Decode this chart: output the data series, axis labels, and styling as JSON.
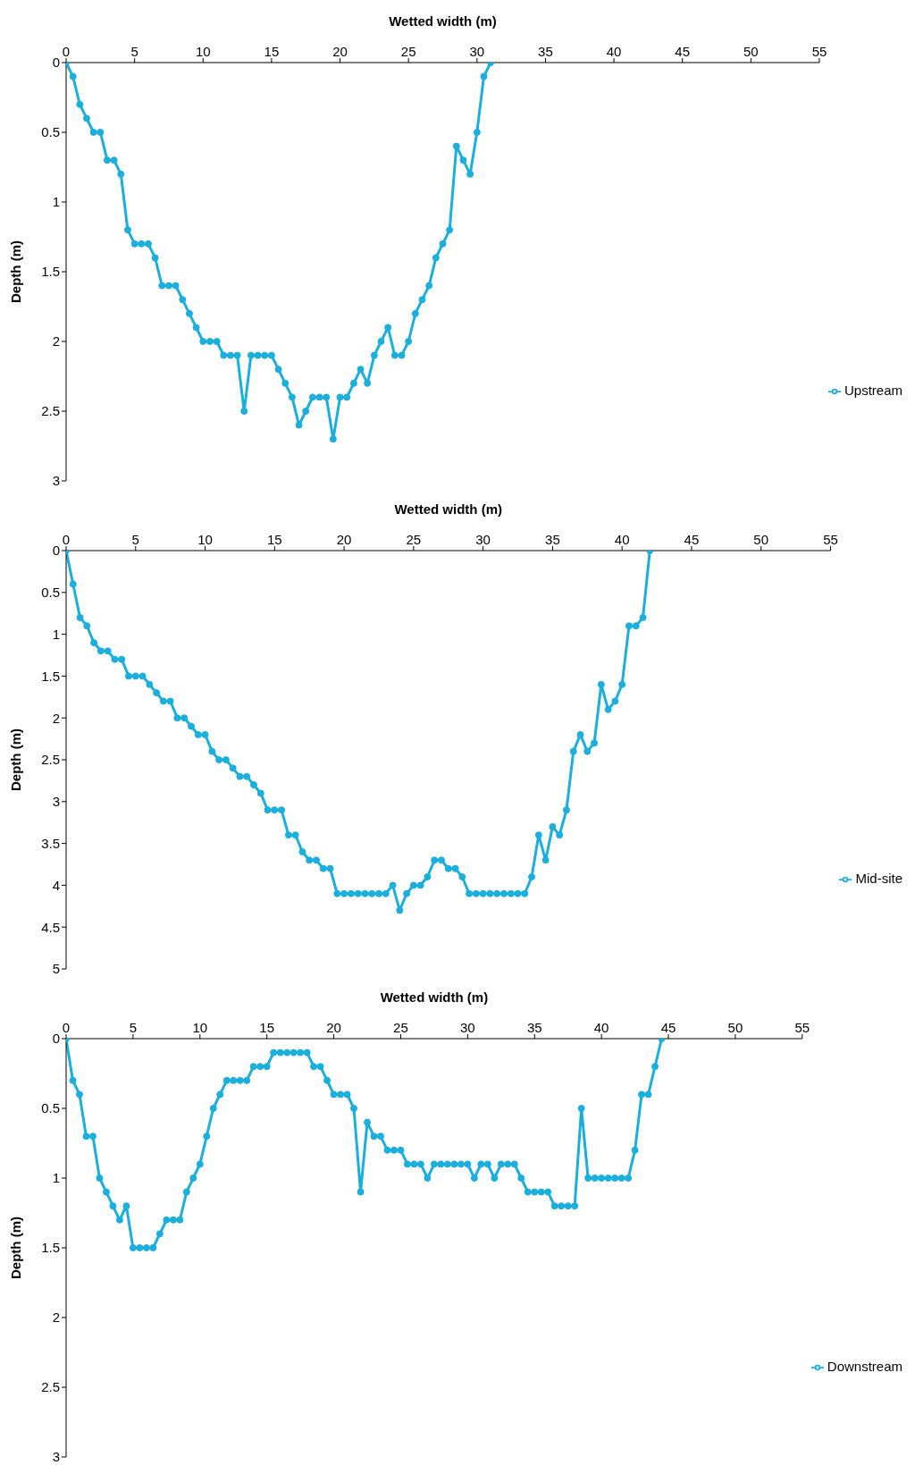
{
  "chart_data": [
    {
      "type": "line",
      "xlabel": "Wetted width (m)",
      "ylabel": "Depth (m)",
      "xlim": [
        0,
        55
      ],
      "xticks": [
        0,
        5,
        10,
        15,
        20,
        25,
        30,
        35,
        40,
        45,
        50,
        55
      ],
      "ylim": [
        3,
        0
      ],
      "yticks": [
        0,
        0.5,
        1,
        1.5,
        2,
        2.5,
        3
      ],
      "grid": false,
      "legend": "bottom right",
      "marker": "circle",
      "line_style": "solid",
      "x": [
        0,
        0.5,
        1,
        1.5,
        2,
        2.5,
        3,
        3.5,
        4,
        4.5,
        5,
        5.5,
        6,
        6.5,
        7,
        7.5,
        8,
        8.5,
        9,
        9.5,
        10,
        10.5,
        11,
        11.5,
        12,
        12.5,
        13,
        13.5,
        14,
        14.5,
        15,
        15.5,
        16,
        16.5,
        17,
        17.5,
        18,
        18.5,
        19,
        19.5,
        20,
        20.5,
        21,
        21.5,
        22,
        22.5,
        23,
        23.5,
        24,
        24.5,
        25,
        25.5,
        26,
        26.5,
        27,
        27.5,
        28,
        28.5,
        29,
        29.5,
        30,
        30.5,
        31
      ],
      "series": [
        {
          "name": "Upstream",
          "color": "#1aafdc",
          "values": [
            0,
            0.1,
            0.3,
            0.4,
            0.5,
            0.5,
            0.7,
            0.7,
            0.8,
            1.2,
            1.3,
            1.3,
            1.3,
            1.4,
            1.6,
            1.6,
            1.6,
            1.7,
            1.8,
            1.9,
            2.0,
            2.0,
            2.0,
            2.1,
            2.1,
            2.1,
            2.5,
            2.1,
            2.1,
            2.1,
            2.1,
            2.2,
            2.3,
            2.4,
            2.6,
            2.5,
            2.4,
            2.4,
            2.4,
            2.7,
            2.4,
            2.4,
            2.3,
            2.2,
            2.3,
            2.1,
            2.0,
            1.9,
            2.1,
            2.1,
            2.0,
            1.8,
            1.7,
            1.6,
            1.4,
            1.3,
            1.2,
            0.6,
            0.7,
            0.8,
            0.5,
            0.1,
            0
          ]
        }
      ]
    },
    {
      "type": "line",
      "xlabel": "Wetted width (m)",
      "ylabel": "Depth (m)",
      "xlim": [
        0,
        55
      ],
      "xticks": [
        0,
        5,
        10,
        15,
        20,
        25,
        30,
        35,
        40,
        45,
        50,
        55
      ],
      "ylim": [
        5,
        0
      ],
      "yticks": [
        0,
        0.5,
        1,
        1.5,
        2,
        2.5,
        3,
        3.5,
        4,
        4.5,
        5
      ],
      "grid": false,
      "legend": "bottom right",
      "marker": "circle",
      "line_style": "solid",
      "x": [
        0,
        0.5,
        1,
        1.5,
        2,
        2.5,
        3,
        3.5,
        4,
        4.5,
        5,
        5.5,
        6,
        6.5,
        7,
        7.5,
        8,
        8.5,
        9,
        9.5,
        10,
        10.5,
        11,
        11.5,
        12,
        12.5,
        13,
        13.5,
        14,
        14.5,
        15,
        15.5,
        16,
        16.5,
        17,
        17.5,
        18,
        18.5,
        19,
        19.5,
        20,
        20.5,
        21,
        21.5,
        22,
        22.5,
        23,
        23.5,
        24,
        24.5,
        25,
        25.5,
        26,
        26.5,
        27,
        27.5,
        28,
        28.5,
        29,
        29.5,
        30,
        30.5,
        31,
        31.5,
        32,
        32.5,
        33,
        33.5,
        34,
        34.5,
        35,
        35.5,
        36,
        36.5,
        37,
        37.5,
        38,
        38.5,
        39,
        39.5,
        40,
        40.5,
        41,
        41.5,
        42
      ],
      "series": [
        {
          "name": "Mid-site",
          "color": "#1aafdc",
          "values": [
            0,
            0.4,
            0.8,
            0.9,
            1.1,
            1.2,
            1.2,
            1.3,
            1.3,
            1.5,
            1.5,
            1.5,
            1.6,
            1.7,
            1.8,
            1.8,
            2.0,
            2.0,
            2.1,
            2.2,
            2.2,
            2.4,
            2.5,
            2.5,
            2.6,
            2.7,
            2.7,
            2.8,
            2.9,
            3.1,
            3.1,
            3.1,
            3.4,
            3.4,
            3.6,
            3.7,
            3.7,
            3.8,
            3.8,
            4.1,
            4.1,
            4.1,
            4.1,
            4.1,
            4.1,
            4.1,
            4.1,
            4.0,
            4.3,
            4.1,
            4.0,
            4.0,
            3.9,
            3.7,
            3.7,
            3.8,
            3.8,
            3.9,
            4.1,
            4.1,
            4.1,
            4.1,
            4.1,
            4.1,
            4.1,
            4.1,
            4.1,
            3.9,
            3.4,
            3.7,
            3.3,
            3.4,
            3.1,
            2.4,
            2.2,
            2.4,
            2.3,
            1.6,
            1.9,
            1.8,
            1.6,
            0.9,
            0.9,
            0.8,
            0
          ]
        }
      ]
    },
    {
      "type": "line",
      "xlabel": "Wetted width (m)",
      "ylabel": "Depth (m)",
      "xlim": [
        0,
        55
      ],
      "xticks": [
        0,
        5,
        10,
        15,
        20,
        25,
        30,
        35,
        40,
        45,
        50,
        55
      ],
      "ylim": [
        3,
        0
      ],
      "yticks": [
        0,
        0.5,
        1,
        1.5,
        2,
        2.5,
        3
      ],
      "grid": false,
      "legend": "bottom right",
      "marker": "circle",
      "line_style": "solid",
      "x": [
        0,
        0.5,
        1,
        1.5,
        2,
        2.5,
        3,
        3.5,
        4,
        4.5,
        5,
        5.5,
        6,
        6.5,
        7,
        7.5,
        8,
        8.5,
        9,
        9.5,
        10,
        10.5,
        11,
        11.5,
        12,
        12.5,
        13,
        13.5,
        14,
        14.5,
        15,
        15.5,
        16,
        16.5,
        17,
        17.5,
        18,
        18.5,
        19,
        19.5,
        20,
        20.5,
        21,
        21.5,
        22,
        22.5,
        23,
        23.5,
        24,
        24.5,
        25,
        25.5,
        26,
        26.5,
        27,
        27.5,
        28,
        28.5,
        29,
        29.5,
        30,
        30.5,
        31,
        31.5,
        32,
        32.5,
        33,
        33.5,
        34,
        34.5,
        35,
        35.5,
        36,
        36.5,
        37,
        37.5,
        38,
        38.5,
        39,
        39.5,
        40,
        40.5,
        41,
        41.5,
        42,
        42.5,
        43,
        43.5,
        44,
        44.5
      ],
      "series": [
        {
          "name": "Downstream",
          "color": "#1aafdc",
          "values": [
            0,
            0.3,
            0.4,
            0.7,
            0.7,
            1.0,
            1.1,
            1.2,
            1.3,
            1.2,
            1.5,
            1.5,
            1.5,
            1.5,
            1.4,
            1.3,
            1.3,
            1.3,
            1.1,
            1.0,
            0.9,
            0.7,
            0.5,
            0.4,
            0.3,
            0.3,
            0.3,
            0.3,
            0.2,
            0.2,
            0.2,
            0.1,
            0.1,
            0.1,
            0.1,
            0.1,
            0.1,
            0.2,
            0.2,
            0.3,
            0.4,
            0.4,
            0.4,
            0.5,
            1.1,
            0.6,
            0.7,
            0.7,
            0.8,
            0.8,
            0.8,
            0.9,
            0.9,
            0.9,
            1.0,
            0.9,
            0.9,
            0.9,
            0.9,
            0.9,
            0.9,
            1.0,
            0.9,
            0.9,
            1.0,
            0.9,
            0.9,
            0.9,
            1.0,
            1.1,
            1.1,
            1.1,
            1.1,
            1.2,
            1.2,
            1.2,
            1.2,
            0.5,
            1.0,
            1.0,
            1.0,
            1.0,
            1.0,
            1.0,
            1.0,
            0.8,
            0.4,
            0.4,
            0.2,
            0
          ]
        }
      ]
    }
  ]
}
